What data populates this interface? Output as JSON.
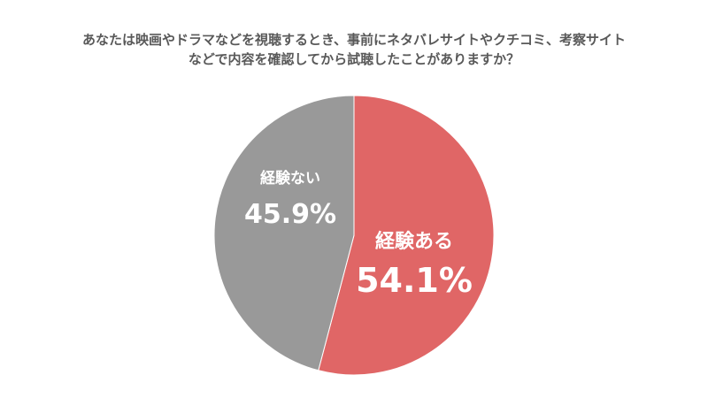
{
  "chart_data": {
    "type": "pie",
    "title_lines": [
      "あなたは映画やドラマなどを視聴するとき、事前にネタバレサイトやクチコミ、考察サイト",
      "などで内容を確認してから試聴したことがありますか？"
    ],
    "slices": [
      {
        "label": "経験ある",
        "value": 54.1,
        "value_label": "54.1%",
        "color": "#e06666"
      },
      {
        "label": "経験ない",
        "value": 45.9,
        "value_label": "45.9%",
        "color": "#999999"
      }
    ]
  }
}
